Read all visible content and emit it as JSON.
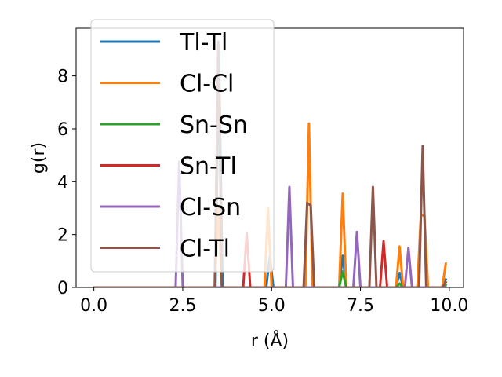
{
  "chart_data": {
    "type": "line",
    "title": "",
    "xlabel": "r (Å)",
    "ylabel": "g(r)",
    "xlim": [
      -0.5,
      10.4
    ],
    "ylim": [
      0,
      9.8
    ],
    "xticks": [
      0.0,
      2.5,
      5.0,
      7.5,
      10.0
    ],
    "xtick_labels": [
      "0.0",
      "2.5",
      "5.0",
      "7.5",
      "10.0"
    ],
    "yticks": [
      0,
      2,
      4,
      6,
      8
    ],
    "ytick_labels": [
      "0",
      "2",
      "4",
      "6",
      "8"
    ],
    "grid": false,
    "legend_position": "top-left",
    "series": [
      {
        "name": "Tl-Tl",
        "color": "#1f77b4",
        "points": [
          [
            0,
            0
          ],
          [
            3.42,
            0
          ],
          [
            3.52,
            8.9
          ],
          [
            3.62,
            0
          ],
          [
            4.85,
            0
          ],
          [
            4.95,
            1.2
          ],
          [
            5.05,
            0
          ],
          [
            6.9,
            0
          ],
          [
            7.0,
            1.2
          ],
          [
            7.1,
            0
          ],
          [
            8.5,
            0
          ],
          [
            8.6,
            0.55
          ],
          [
            8.7,
            0
          ],
          [
            9.8,
            0
          ],
          [
            9.9,
            0.3
          ]
        ]
      },
      {
        "name": "Cl-Cl",
        "color": "#ff7f0e",
        "points": [
          [
            0,
            0
          ],
          [
            3.4,
            0
          ],
          [
            3.5,
            3.0
          ],
          [
            3.6,
            0
          ],
          [
            4.8,
            0
          ],
          [
            4.9,
            3.0
          ],
          [
            5.0,
            0
          ],
          [
            5.95,
            0
          ],
          [
            6.05,
            6.2
          ],
          [
            6.15,
            0
          ],
          [
            6.9,
            0
          ],
          [
            7.0,
            3.55
          ],
          [
            7.1,
            0
          ],
          [
            8.5,
            0
          ],
          [
            8.6,
            1.55
          ],
          [
            8.7,
            0
          ],
          [
            9.1,
            0
          ],
          [
            9.2,
            2.75
          ],
          [
            9.3,
            2.7
          ],
          [
            9.4,
            0
          ],
          [
            9.8,
            0
          ],
          [
            9.9,
            0.9
          ]
        ]
      },
      {
        "name": "Sn-Sn",
        "color": "#2ca02c",
        "points": [
          [
            0,
            0
          ],
          [
            6.9,
            0
          ],
          [
            7.0,
            0.6
          ],
          [
            7.1,
            0
          ],
          [
            8.5,
            0
          ],
          [
            8.6,
            0.15
          ],
          [
            8.7,
            0
          ],
          [
            9.8,
            0
          ],
          [
            9.9,
            0.1
          ]
        ]
      },
      {
        "name": "Sn-Tl",
        "color": "#d62728",
        "points": [
          [
            0,
            0
          ],
          [
            4.2,
            0
          ],
          [
            4.3,
            2.05
          ],
          [
            4.4,
            0
          ],
          [
            8.05,
            0
          ],
          [
            8.15,
            1.75
          ],
          [
            8.25,
            0
          ],
          [
            9.8,
            0
          ],
          [
            9.9,
            0
          ]
        ]
      },
      {
        "name": "Cl-Sn",
        "color": "#9467bd",
        "points": [
          [
            0,
            0
          ],
          [
            2.3,
            0
          ],
          [
            2.4,
            4.75
          ],
          [
            2.5,
            0
          ],
          [
            5.4,
            0
          ],
          [
            5.5,
            3.8
          ],
          [
            5.6,
            0
          ],
          [
            7.3,
            0
          ],
          [
            7.4,
            2.1
          ],
          [
            7.5,
            0
          ],
          [
            8.75,
            0
          ],
          [
            8.85,
            1.5
          ],
          [
            8.95,
            0
          ],
          [
            9.8,
            0
          ],
          [
            9.9,
            0
          ]
        ]
      },
      {
        "name": "Cl-Tl",
        "color": "#8c564b",
        "points": [
          [
            0,
            0
          ],
          [
            3.4,
            0
          ],
          [
            3.5,
            9.3
          ],
          [
            3.6,
            0
          ],
          [
            5.9,
            0
          ],
          [
            6.0,
            3.2
          ],
          [
            6.1,
            3.1
          ],
          [
            6.2,
            0
          ],
          [
            7.75,
            0
          ],
          [
            7.85,
            3.8
          ],
          [
            7.95,
            0
          ],
          [
            9.15,
            0
          ],
          [
            9.25,
            5.35
          ],
          [
            9.35,
            0
          ],
          [
            9.8,
            0
          ],
          [
            9.9,
            0.2
          ]
        ]
      }
    ]
  }
}
